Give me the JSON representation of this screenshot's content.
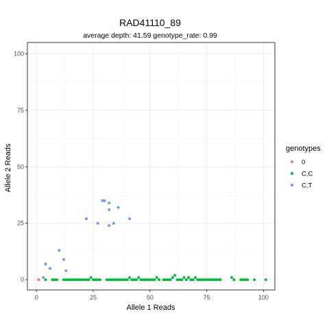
{
  "chart_data": {
    "type": "scatter",
    "title": "RAD41110_89",
    "subtitle": "average depth:  41.59  genotype_rate:  0.99",
    "xlabel": "Allele 1 Reads",
    "ylabel": "Allele 2 Reads",
    "xlim": [
      -4,
      105
    ],
    "ylim": [
      -4.5,
      105
    ],
    "xticks": [
      0,
      25,
      50,
      75,
      100
    ],
    "yticks": [
      0,
      25,
      50,
      75,
      100
    ],
    "grid": true,
    "legend": {
      "title": "genotypes",
      "placement": "right"
    },
    "series": [
      {
        "name": "0",
        "color": "#F8766D",
        "points": [
          [
            1,
            0
          ]
        ]
      },
      {
        "name": "C,C",
        "color": "#00BA38",
        "points": [
          [
            4,
            0
          ],
          [
            7,
            0
          ],
          [
            8,
            0
          ],
          [
            9,
            0
          ],
          [
            12,
            0
          ],
          [
            13,
            0
          ],
          [
            14,
            0
          ],
          [
            15,
            0
          ],
          [
            16,
            0
          ],
          [
            17,
            0
          ],
          [
            18,
            0
          ],
          [
            19,
            0
          ],
          [
            20,
            0
          ],
          [
            21,
            0
          ],
          [
            22,
            0
          ],
          [
            23,
            0
          ],
          [
            24,
            1
          ],
          [
            25,
            0
          ],
          [
            26,
            0
          ],
          [
            27,
            0
          ],
          [
            28,
            0
          ],
          [
            31,
            0
          ],
          [
            32,
            0
          ],
          [
            33,
            0
          ],
          [
            34,
            0
          ],
          [
            35,
            0
          ],
          [
            36,
            0
          ],
          [
            37,
            0
          ],
          [
            38,
            0
          ],
          [
            39,
            0
          ],
          [
            40,
            0
          ],
          [
            41,
            1
          ],
          [
            42,
            0
          ],
          [
            43,
            0
          ],
          [
            44,
            0
          ],
          [
            45,
            1
          ],
          [
            46,
            0
          ],
          [
            47,
            0
          ],
          [
            48,
            0
          ],
          [
            49,
            0
          ],
          [
            50,
            0
          ],
          [
            51,
            0
          ],
          [
            52,
            0
          ],
          [
            53,
            1
          ],
          [
            54,
            0
          ],
          [
            56,
            0
          ],
          [
            57,
            0
          ],
          [
            58,
            0
          ],
          [
            59,
            0
          ],
          [
            60,
            1
          ],
          [
            61,
            2
          ],
          [
            62,
            0
          ],
          [
            63,
            0
          ],
          [
            64,
            0
          ],
          [
            65,
            1
          ],
          [
            66,
            0
          ],
          [
            67,
            1
          ],
          [
            68,
            0
          ],
          [
            69,
            0
          ],
          [
            70,
            1
          ],
          [
            71,
            0
          ],
          [
            72,
            0
          ],
          [
            73,
            0
          ],
          [
            74,
            0
          ],
          [
            75,
            0
          ],
          [
            76,
            0
          ],
          [
            77,
            0
          ],
          [
            78,
            0
          ],
          [
            79,
            0
          ],
          [
            80,
            0
          ],
          [
            81,
            0
          ],
          [
            86,
            1
          ],
          [
            87,
            0
          ],
          [
            90,
            0
          ],
          [
            91,
            0
          ],
          [
            92,
            0
          ],
          [
            93,
            0
          ],
          [
            96,
            0
          ],
          [
            101,
            0
          ]
        ]
      },
      {
        "name": "C,T",
        "color": "#619CFF",
        "points": [
          [
            3,
            1
          ],
          [
            4,
            7
          ],
          [
            6,
            5
          ],
          [
            10,
            13
          ],
          [
            12,
            9
          ],
          [
            13,
            4
          ],
          [
            22,
            27
          ],
          [
            27,
            25
          ],
          [
            29,
            35
          ],
          [
            30,
            35
          ],
          [
            32,
            34
          ],
          [
            32,
            31
          ],
          [
            32,
            24
          ],
          [
            34,
            25
          ],
          [
            36,
            32
          ],
          [
            41,
            27
          ]
        ]
      }
    ]
  }
}
